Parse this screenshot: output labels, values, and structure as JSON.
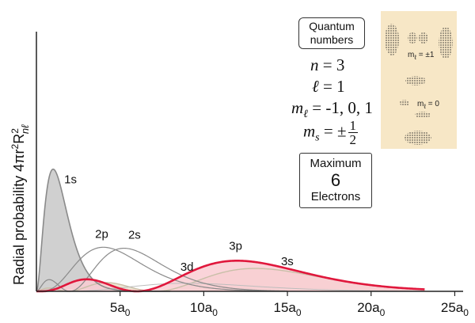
{
  "chart": {
    "y_axis_label": "Radial probability 4πr²R²nℓ",
    "x_ticks": [
      {
        "value": 5,
        "label": "5a0"
      },
      {
        "value": 10,
        "label": "10a0"
      },
      {
        "value": 15,
        "label": "15a0"
      },
      {
        "value": 20,
        "label": "20a0"
      },
      {
        "value": 25,
        "label": "25a0"
      }
    ],
    "xlim": [
      0,
      25.5
    ]
  },
  "chart_data": {
    "type": "line",
    "xlabel": "",
    "ylabel": "Radial probability 4πr²R²nℓ",
    "xlim": [
      0,
      25.5
    ],
    "series": [
      {
        "name": "1s",
        "label": "1s",
        "color": "#8a8a8a",
        "fill": "#c8c8c8",
        "peak_x": 1.0
      },
      {
        "name": "2p",
        "label": "2p",
        "color": "#8a8a8a",
        "peak_x": 4.0
      },
      {
        "name": "2s",
        "label": "2s",
        "color": "#8a8a8a",
        "peak_x": 5.2
      },
      {
        "name": "3d",
        "label": "3d",
        "color": "#bdbdbd",
        "peak_x": 9.0
      },
      {
        "name": "3p",
        "label": "3p",
        "color": "#e0173c",
        "fill": "#f9cdd2",
        "peak_x": 12.0
      },
      {
        "name": "3s",
        "label": "3s",
        "color": "#c9bfa8",
        "fill": "#eadfc8",
        "peak_x": 13.1
      }
    ]
  },
  "quantum": {
    "box_line1": "Quantum",
    "box_line2": "numbers",
    "n_sym": "n",
    "n_val": " = 3",
    "l_sym": "ℓ",
    "l_val": " = 1",
    "ml_sym": "m",
    "ml_sub": "ℓ",
    "ml_val": " = -1, 0, 1",
    "ms_sym": "m",
    "ms_sub": "s",
    "ms_val": " = ±",
    "ms_num": "1",
    "ms_den": "2"
  },
  "max": {
    "line1": "Maximum",
    "line2": "6",
    "line3": "Electrons"
  },
  "orbitals": {
    "label_pm1": "mℓ = ±1",
    "label_0": "mℓ = 0"
  },
  "colors": {
    "highlight_curve": "#e0173c",
    "highlight_fill": "#f9cdd2",
    "panel_bg": "#f7e7c6"
  }
}
